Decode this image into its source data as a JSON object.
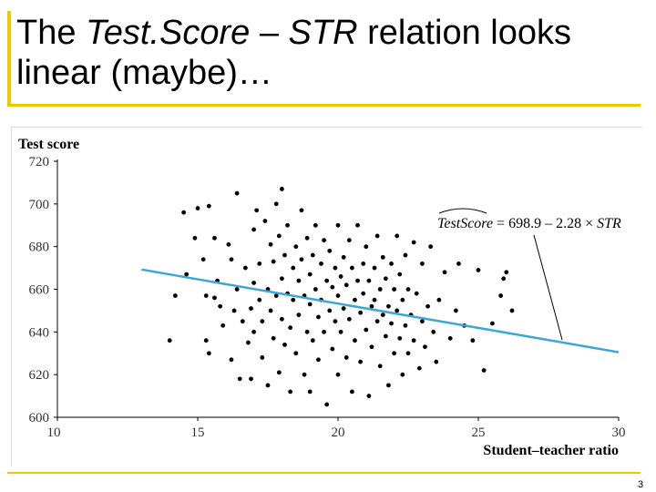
{
  "slide": {
    "title_part1": "The ",
    "title_italic1": "Test.Score",
    "title_part2": " – ",
    "title_italic2": "STR",
    "title_part3": " relation looks linear (maybe)…",
    "page_number": "3"
  },
  "chart_data": {
    "type": "scatter",
    "title": "",
    "ylabel": "Test score",
    "xlabel": "Student–teacher ratio",
    "xlim": [
      10,
      30
    ],
    "ylim": [
      600,
      720
    ],
    "x_ticks": [
      10,
      15,
      20,
      25,
      30
    ],
    "y_ticks": [
      600,
      620,
      640,
      660,
      680,
      700,
      720
    ],
    "grid": false,
    "regression_line": {
      "intercept": 698.9,
      "slope": -2.28,
      "x_range": [
        13,
        30
      ],
      "color": "#3aa7d8",
      "equation_hat": "TestScore",
      "equation_rest": " = 698.9 – 2.28 × ",
      "equation_var": "STR"
    },
    "points": [
      [
        14.0,
        636
      ],
      [
        14.2,
        657
      ],
      [
        14.5,
        696
      ],
      [
        14.6,
        667
      ],
      [
        14.9,
        684
      ],
      [
        15.0,
        698
      ],
      [
        15.2,
        674
      ],
      [
        15.3,
        657
      ],
      [
        15.3,
        636
      ],
      [
        15.4,
        630
      ],
      [
        15.4,
        699
      ],
      [
        15.6,
        684
      ],
      [
        15.6,
        656
      ],
      [
        15.7,
        664
      ],
      [
        15.8,
        652
      ],
      [
        15.9,
        643
      ],
      [
        16.1,
        681
      ],
      [
        16.2,
        674
      ],
      [
        16.2,
        627
      ],
      [
        16.3,
        650
      ],
      [
        16.4,
        660
      ],
      [
        16.4,
        705
      ],
      [
        16.5,
        618
      ],
      [
        16.6,
        645
      ],
      [
        16.7,
        670
      ],
      [
        16.8,
        635
      ],
      [
        16.9,
        651
      ],
      [
        16.9,
        618
      ],
      [
        17.0,
        688
      ],
      [
        17.0,
        663
      ],
      [
        17.0,
        640
      ],
      [
        17.1,
        697
      ],
      [
        17.2,
        672
      ],
      [
        17.2,
        655
      ],
      [
        17.3,
        645
      ],
      [
        17.3,
        628
      ],
      [
        17.4,
        692
      ],
      [
        17.5,
        660
      ],
      [
        17.5,
        615
      ],
      [
        17.6,
        681
      ],
      [
        17.6,
        650
      ],
      [
        17.7,
        673
      ],
      [
        17.7,
        637
      ],
      [
        17.8,
        700
      ],
      [
        17.8,
        657
      ],
      [
        17.9,
        621
      ],
      [
        17.9,
        685
      ],
      [
        18.0,
        665
      ],
      [
        18.0,
        646
      ],
      [
        18.0,
        707
      ],
      [
        18.1,
        634
      ],
      [
        18.1,
        676
      ],
      [
        18.2,
        658
      ],
      [
        18.2,
        690
      ],
      [
        18.3,
        642
      ],
      [
        18.3,
        612
      ],
      [
        18.4,
        670
      ],
      [
        18.4,
        655
      ],
      [
        18.5,
        680
      ],
      [
        18.5,
        630
      ],
      [
        18.6,
        664
      ],
      [
        18.6,
        648
      ],
      [
        18.7,
        697
      ],
      [
        18.7,
        674
      ],
      [
        18.8,
        657
      ],
      [
        18.8,
        620
      ],
      [
        18.9,
        684
      ],
      [
        18.9,
        640
      ],
      [
        19.0,
        667
      ],
      [
        19.0,
        653
      ],
      [
        19.0,
        612
      ],
      [
        19.1,
        676
      ],
      [
        19.1,
        636
      ],
      [
        19.2,
        690
      ],
      [
        19.2,
        660
      ],
      [
        19.3,
        647
      ],
      [
        19.3,
        627
      ],
      [
        19.4,
        672
      ],
      [
        19.4,
        655
      ],
      [
        19.5,
        683
      ],
      [
        19.5,
        640
      ],
      [
        19.6,
        664
      ],
      [
        19.6,
        606
      ],
      [
        19.7,
        650
      ],
      [
        19.7,
        678
      ],
      [
        19.8,
        661
      ],
      [
        19.8,
        632
      ],
      [
        19.9,
        670
      ],
      [
        19.9,
        645
      ],
      [
        20.0,
        690
      ],
      [
        20.0,
        657
      ],
      [
        20.0,
        620
      ],
      [
        20.1,
        666
      ],
      [
        20.1,
        640
      ],
      [
        20.2,
        675
      ],
      [
        20.2,
        651
      ],
      [
        20.3,
        628
      ],
      [
        20.3,
        662
      ],
      [
        20.4,
        683
      ],
      [
        20.4,
        646
      ],
      [
        20.5,
        612
      ],
      [
        20.5,
        670
      ],
      [
        20.6,
        655
      ],
      [
        20.6,
        636
      ],
      [
        20.7,
        664
      ],
      [
        20.7,
        690
      ],
      [
        20.8,
        649
      ],
      [
        20.8,
        626
      ],
      [
        20.9,
        672
      ],
      [
        20.9,
        658
      ],
      [
        21.0,
        641
      ],
      [
        21.0,
        680
      ],
      [
        21.1,
        664
      ],
      [
        21.1,
        610
      ],
      [
        21.2,
        652
      ],
      [
        21.2,
        633
      ],
      [
        21.3,
        670
      ],
      [
        21.3,
        655
      ],
      [
        21.4,
        645
      ],
      [
        21.4,
        685
      ],
      [
        21.5,
        660
      ],
      [
        21.5,
        624
      ],
      [
        21.6,
        648
      ],
      [
        21.6,
        675
      ],
      [
        21.7,
        638
      ],
      [
        21.7,
        665
      ],
      [
        21.8,
        652
      ],
      [
        21.8,
        615
      ],
      [
        21.9,
        672
      ],
      [
        21.9,
        644
      ],
      [
        22.0,
        660
      ],
      [
        22.0,
        630
      ],
      [
        22.1,
        685
      ],
      [
        22.1,
        650
      ],
      [
        22.2,
        637
      ],
      [
        22.2,
        667
      ],
      [
        22.3,
        655
      ],
      [
        22.3,
        620
      ],
      [
        22.4,
        643
      ],
      [
        22.4,
        676
      ],
      [
        22.5,
        660
      ],
      [
        22.5,
        630
      ],
      [
        22.6,
        648
      ],
      [
        22.7,
        682
      ],
      [
        22.7,
        636
      ],
      [
        22.8,
        658
      ],
      [
        22.9,
        623
      ],
      [
        23.0,
        645
      ],
      [
        23.0,
        672
      ],
      [
        23.1,
        633
      ],
      [
        23.2,
        652
      ],
      [
        23.3,
        680
      ],
      [
        23.4,
        640
      ],
      [
        23.5,
        626
      ],
      [
        23.6,
        655
      ],
      [
        23.8,
        668
      ],
      [
        24.0,
        637
      ],
      [
        24.2,
        650
      ],
      [
        24.3,
        672
      ],
      [
        24.5,
        643
      ],
      [
        24.8,
        636
      ],
      [
        25.0,
        669
      ],
      [
        25.2,
        622
      ],
      [
        25.5,
        644
      ],
      [
        25.8,
        657
      ],
      [
        25.9,
        665
      ],
      [
        26.0,
        668
      ],
      [
        26.2,
        650
      ]
    ]
  }
}
